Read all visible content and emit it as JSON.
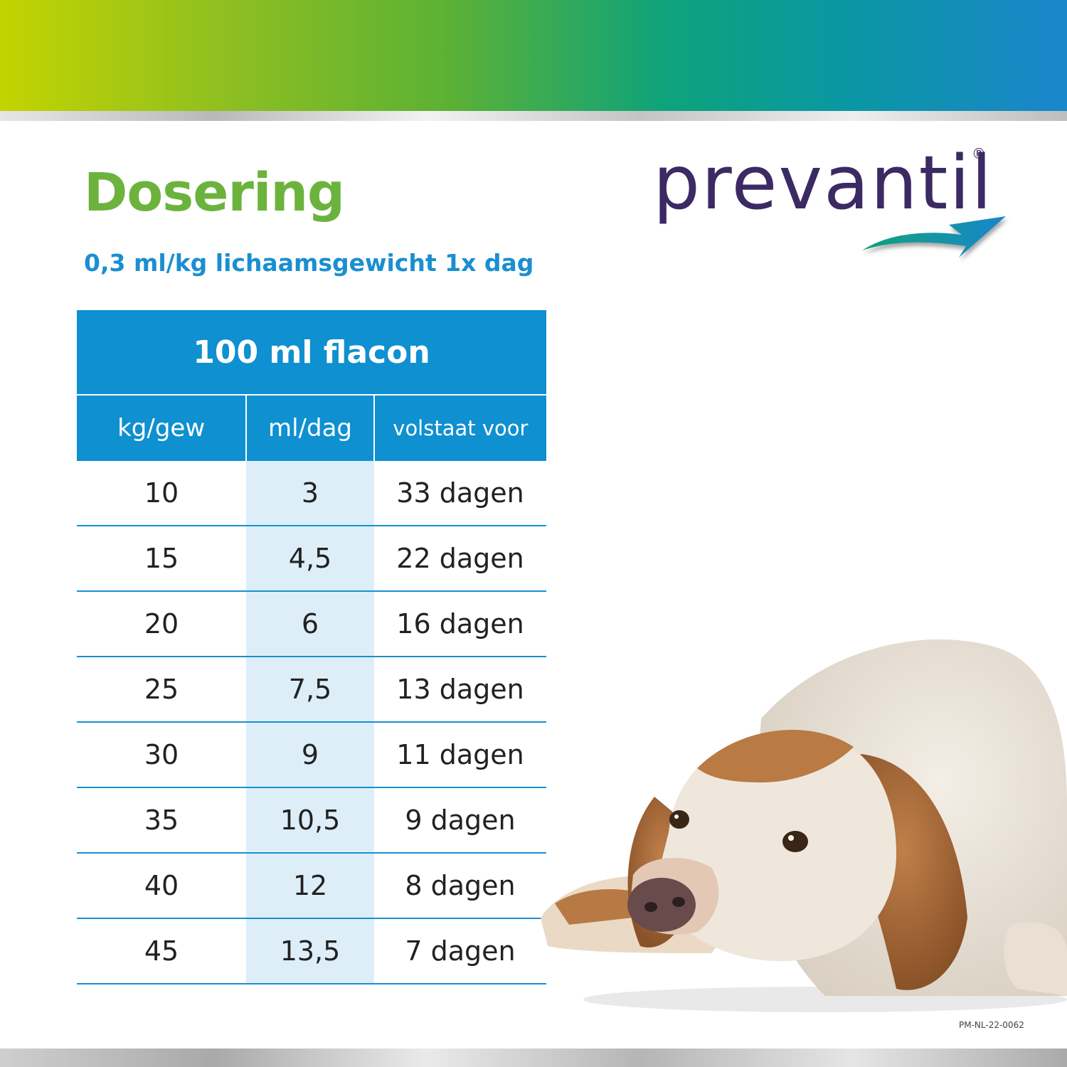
{
  "header": {
    "title": "Dosering",
    "subtitle": "0,3 ml/kg lichaamsgewicht 1x dag"
  },
  "logo": {
    "text": "prevantil",
    "registered": "®",
    "colors": {
      "text": "#3b2a63",
      "arrow_start": "#0fa37a",
      "arrow_end": "#1a86cc"
    }
  },
  "table": {
    "caption": "100 ml flacon",
    "columns": [
      "kg/gew",
      "ml/dag",
      "volstaat voor"
    ],
    "rows": [
      [
        "10",
        "3",
        "33 dagen"
      ],
      [
        "15",
        "4,5",
        "22 dagen"
      ],
      [
        "20",
        "6",
        "16 dagen"
      ],
      [
        "25",
        "7,5",
        "13 dagen"
      ],
      [
        "30",
        "9",
        "11 dagen"
      ],
      [
        "35",
        "10,5",
        "9 dagen"
      ],
      [
        "40",
        "12",
        "8 dagen"
      ],
      [
        "45",
        "13,5",
        "7 dagen"
      ]
    ]
  },
  "footer": {
    "code": "PM-NL-22-0062"
  },
  "colors": {
    "title_green": "#6cb33e",
    "accent_blue": "#0f90d0",
    "highlight_column": "#ddeef9"
  }
}
